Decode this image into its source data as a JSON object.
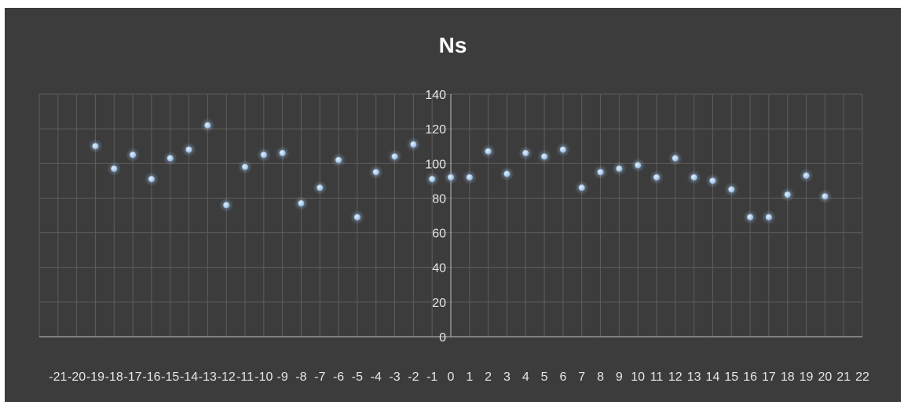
{
  "chart_data": {
    "type": "scatter",
    "title": "Ns",
    "xlim": [
      -22,
      22
    ],
    "ylim": [
      0,
      140
    ],
    "x_ticks": [
      -21,
      -20,
      -19,
      -18,
      -17,
      -16,
      -15,
      -14,
      -13,
      -12,
      -11,
      -10,
      -9,
      -8,
      -7,
      -6,
      -5,
      -4,
      -3,
      -2,
      -1,
      0,
      1,
      2,
      3,
      4,
      5,
      6,
      7,
      8,
      9,
      10,
      11,
      12,
      13,
      14,
      15,
      16,
      17,
      18,
      19,
      20,
      21,
      22
    ],
    "y_ticks": [
      0,
      20,
      40,
      60,
      80,
      100,
      120,
      140
    ],
    "grid": true,
    "legend": "none",
    "colors": {
      "background": "#3c3c3c",
      "grid": "#5e5e5e",
      "axis": "#bfbfbf",
      "marker": "#9dc3e6",
      "text": "#e6e6e6"
    },
    "points": [
      {
        "x": -19,
        "y": 110
      },
      {
        "x": -18,
        "y": 97
      },
      {
        "x": -17,
        "y": 105
      },
      {
        "x": -16,
        "y": 91
      },
      {
        "x": -15,
        "y": 103
      },
      {
        "x": -14,
        "y": 108
      },
      {
        "x": -13,
        "y": 122
      },
      {
        "x": -12,
        "y": 76
      },
      {
        "x": -11,
        "y": 98
      },
      {
        "x": -10,
        "y": 105
      },
      {
        "x": -9,
        "y": 106
      },
      {
        "x": -8,
        "y": 77
      },
      {
        "x": -7,
        "y": 86
      },
      {
        "x": -6,
        "y": 102
      },
      {
        "x": -5,
        "y": 69
      },
      {
        "x": -4,
        "y": 95
      },
      {
        "x": -3,
        "y": 104
      },
      {
        "x": -2,
        "y": 111
      },
      {
        "x": -1,
        "y": 91
      },
      {
        "x": 0,
        "y": 92
      },
      {
        "x": 1,
        "y": 92
      },
      {
        "x": 2,
        "y": 107
      },
      {
        "x": 3,
        "y": 94
      },
      {
        "x": 4,
        "y": 106
      },
      {
        "x": 5,
        "y": 104
      },
      {
        "x": 6,
        "y": 108
      },
      {
        "x": 7,
        "y": 86
      },
      {
        "x": 8,
        "y": 95
      },
      {
        "x": 9,
        "y": 97
      },
      {
        "x": 10,
        "y": 99
      },
      {
        "x": 11,
        "y": 92
      },
      {
        "x": 12,
        "y": 103
      },
      {
        "x": 13,
        "y": 92
      },
      {
        "x": 14,
        "y": 90
      },
      {
        "x": 15,
        "y": 85
      },
      {
        "x": 16,
        "y": 69
      },
      {
        "x": 17,
        "y": 69
      },
      {
        "x": 18,
        "y": 82
      },
      {
        "x": 19,
        "y": 93
      },
      {
        "x": 20,
        "y": 81
      }
    ]
  }
}
